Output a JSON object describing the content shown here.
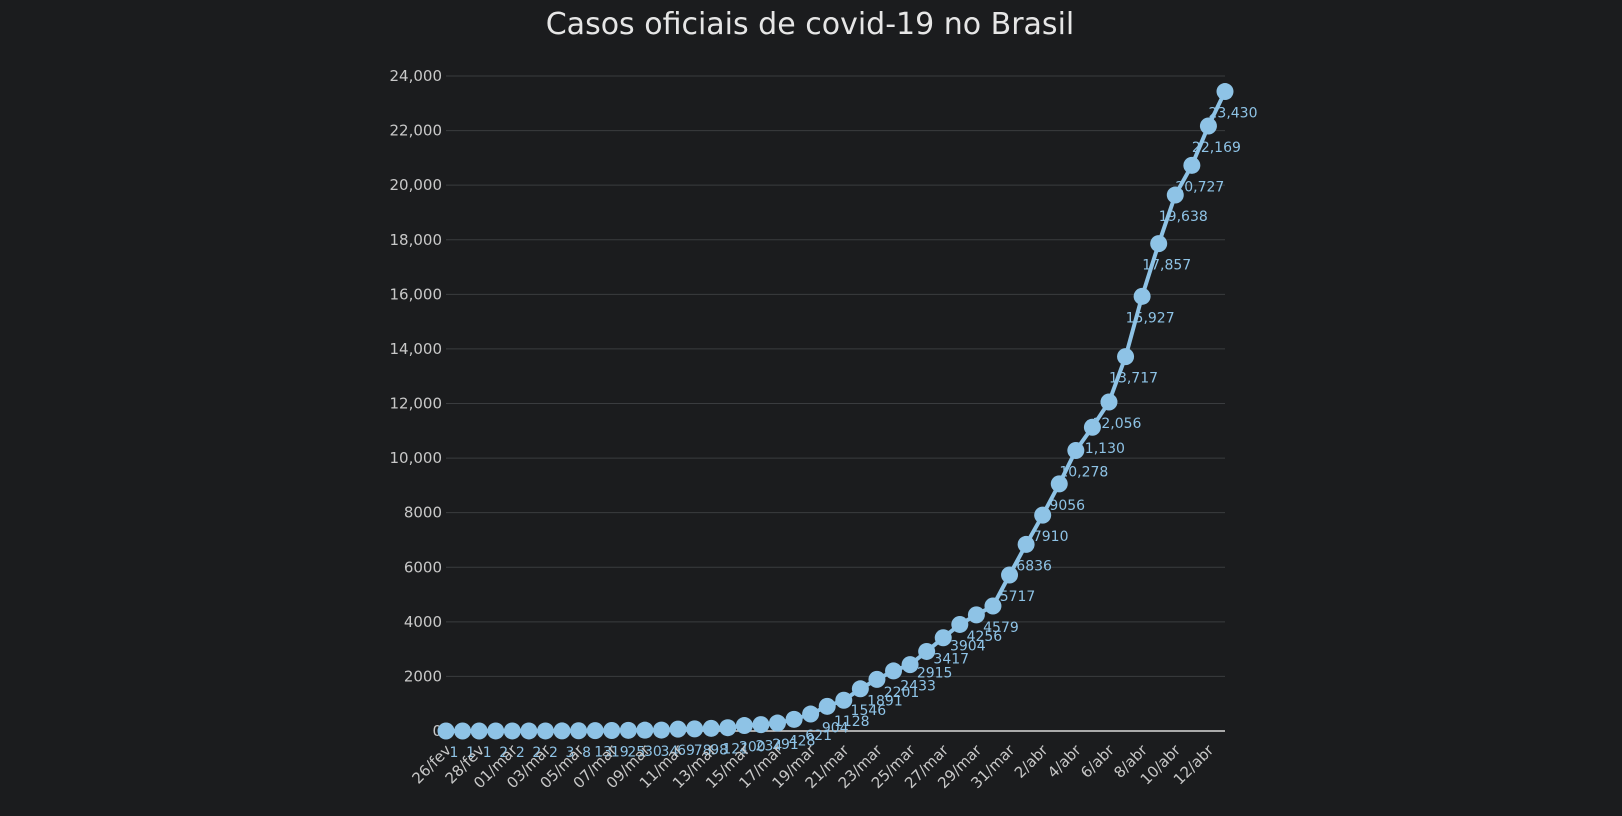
{
  "colors": {
    "background": "#1b1c1e",
    "series": "#8ec3e6",
    "grid": "#3a3c3f",
    "text": "#c8c8c8"
  },
  "chart_data": {
    "type": "line",
    "title": "Casos oficiais de covid-19 no Brasil",
    "xlabel": "",
    "ylabel": "",
    "ylim": [
      0,
      24000
    ],
    "grid": true,
    "markers": "circle",
    "y_ticks": [
      {
        "value": 0,
        "label": "0"
      },
      {
        "value": 2000,
        "label": "2000"
      },
      {
        "value": 4000,
        "label": "4000"
      },
      {
        "value": 6000,
        "label": "6000"
      },
      {
        "value": 8000,
        "label": "8000"
      },
      {
        "value": 10000,
        "label": "10,000"
      },
      {
        "value": 12000,
        "label": "12,000"
      },
      {
        "value": 14000,
        "label": "14,000"
      },
      {
        "value": 16000,
        "label": "16,000"
      },
      {
        "value": 18000,
        "label": "18,000"
      },
      {
        "value": 20000,
        "label": "20,000"
      },
      {
        "value": 22000,
        "label": "22,000"
      },
      {
        "value": 24000,
        "label": "24,000"
      }
    ],
    "x_tick_labels": [
      "26/fev",
      "28/fev",
      "01/mar",
      "03/mar",
      "05/mar",
      "07/mar",
      "09/mar",
      "11/mar",
      "13/mar",
      "15/mar",
      "17/mar",
      "19/mar",
      "21/mar",
      "23/mar",
      "25/mar",
      "27/mar",
      "29/mar",
      "31/mar",
      "2/abr",
      "4/abr",
      "6/abr",
      "8/abr",
      "10/abr",
      "12/abr"
    ],
    "series": [
      {
        "values": [
          1,
          1,
          1,
          2,
          2,
          2,
          2,
          3,
          8,
          13,
          19,
          25,
          30,
          34,
          69,
          78,
          98,
          121,
          200,
          234,
          291,
          428,
          621,
          904,
          1128,
          1546,
          1891,
          2201,
          2433,
          2915,
          3417,
          3904,
          4256,
          4579,
          5717,
          6836,
          7910,
          9056,
          10278,
          11130,
          12056,
          13717,
          15927,
          17857,
          19638,
          20727,
          22169,
          23430
        ],
        "labels": [
          "1",
          "1",
          "1",
          "2",
          "2",
          "2",
          "2",
          "3",
          "8",
          "13",
          "19",
          "25",
          "30",
          "34",
          "69",
          "78",
          "98",
          "121",
          "200",
          "234",
          "291",
          "428",
          "621",
          "904",
          "1128",
          "1546",
          "1891",
          "2201",
          "2433",
          "2915",
          "3417",
          "3904",
          "4256",
          "4579",
          "5717",
          "6836",
          "7910",
          "9056",
          "10,278",
          "11,130",
          "12,056",
          "13,717",
          "15,927",
          "17,857",
          "19,638",
          "20,727",
          "22,169",
          "23,430"
        ]
      }
    ]
  }
}
